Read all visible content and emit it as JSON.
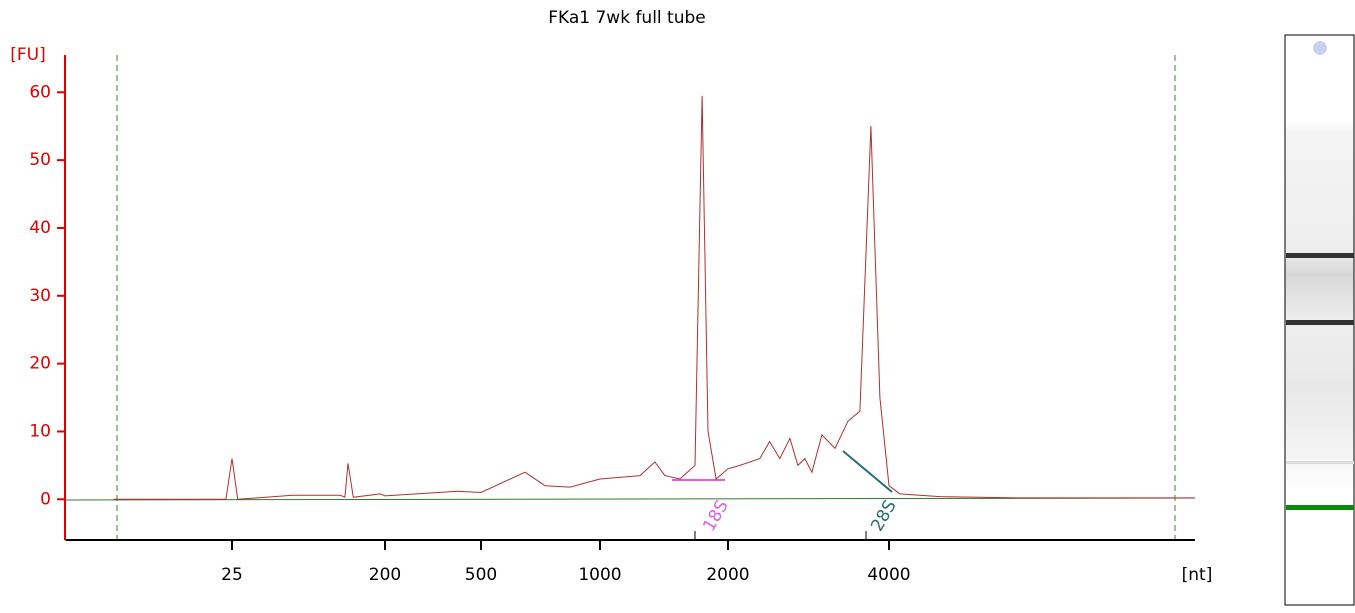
{
  "chart_data": {
    "type": "line",
    "title": "FKa1 7wk full tube",
    "y_label": "[FU]",
    "x_label": "[nt]",
    "x": [
      5,
      23,
      25,
      27,
      57,
      109,
      116,
      121,
      130,
      187,
      200,
      400,
      500,
      646,
      726,
      840,
      1000,
      1242,
      1346,
      1421,
      1541,
      1673,
      1738,
      1795,
      1875,
      2000,
      2105,
      2293,
      2392,
      2500,
      2611,
      2702,
      2784,
      2870,
      2997,
      3170,
      3351,
      3529,
      3700,
      3846,
      4000,
      4190,
      4977,
      7031,
      14930
    ],
    "values": [
      0,
      0,
      6,
      0,
      0.6,
      0.6,
      0.3,
      5.3,
      0.3,
      0.8,
      0.5,
      1.2,
      1,
      4,
      2,
      1.8,
      3,
      3.5,
      5.5,
      3.5,
      3,
      5,
      59.5,
      10,
      3,
      4.5,
      5,
      6,
      8.5,
      6,
      9,
      5,
      6,
      4,
      9.5,
      7.5,
      11.5,
      13,
      55,
      15,
      2,
      0.8,
      0.4,
      0.2,
      0.2
    ],
    "color": "#b03030",
    "xlim": [
      2.6,
      14930
    ],
    "xticks": [
      25,
      200,
      500,
      1000,
      2000,
      4000
    ],
    "xscale": "log",
    "ylim": [
      -6,
      65.5
    ],
    "yticks": [
      0,
      10,
      20,
      30,
      40,
      50,
      60
    ],
    "annotations": [
      "18S",
      "28S"
    ]
  }
}
